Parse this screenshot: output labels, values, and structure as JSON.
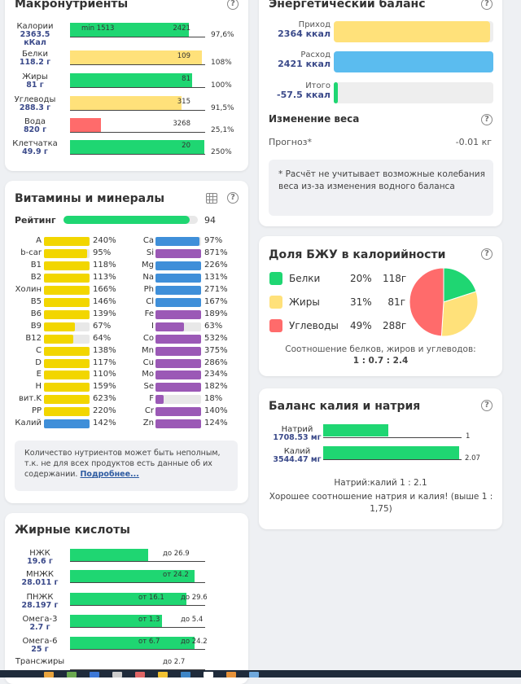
{
  "macros": {
    "title": "Макронутриенты",
    "rows": [
      {
        "name": "Калории",
        "amount": "2363.5",
        "unit": "кКал",
        "min_label": "min 1513",
        "norm": "2421",
        "pct": "97,6%",
        "fill": 0.976,
        "color": "#1fd672"
      },
      {
        "name": "Белки",
        "amount": "118.2 г",
        "norm": "109",
        "pct": "108%",
        "fill": 1.08,
        "color": "#ffe17a"
      },
      {
        "name": "Жиры",
        "amount": "81 г",
        "norm": "81",
        "pct": "100%",
        "fill": 1.0,
        "color": "#1fd672"
      },
      {
        "name": "Углеводы",
        "amount": "288.3 г",
        "norm": "315",
        "pct": "91,5%",
        "fill": 0.915,
        "color": "#ffe17a"
      },
      {
        "name": "Вода",
        "amount": "820 г",
        "norm": "3268",
        "pct": "25,1%",
        "fill": 0.251,
        "color": "#ff6b6b"
      },
      {
        "name": "Клетчатка",
        "amount": "49.9 г",
        "norm": "20",
        "pct": "250%",
        "fill": 2.5,
        "color": "#1fd672"
      }
    ]
  },
  "vitamins": {
    "title": "Витамины и минералы",
    "rating_label": "Рейтинг",
    "rating_value": "94",
    "rating_fill": 0.94,
    "left": [
      {
        "name": "A",
        "pct": "240%",
        "fill": 2.4,
        "color": "#f2d600"
      },
      {
        "name": "b-car",
        "pct": "95%",
        "fill": 0.95,
        "color": "#f2d600"
      },
      {
        "name": "B1",
        "pct": "118%",
        "fill": 1.18,
        "color": "#f2d600"
      },
      {
        "name": "B2",
        "pct": "113%",
        "fill": 1.13,
        "color": "#f2d600"
      },
      {
        "name": "Холин",
        "pct": "166%",
        "fill": 1.66,
        "color": "#f2d600"
      },
      {
        "name": "B5",
        "pct": "146%",
        "fill": 1.46,
        "color": "#f2d600"
      },
      {
        "name": "B6",
        "pct": "139%",
        "fill": 1.39,
        "color": "#f2d600"
      },
      {
        "name": "B9",
        "pct": "67%",
        "fill": 0.67,
        "color": "#f2d600"
      },
      {
        "name": "B12",
        "pct": "64%",
        "fill": 0.64,
        "color": "#f2d600"
      },
      {
        "name": "C",
        "pct": "138%",
        "fill": 1.38,
        "color": "#f2d600"
      },
      {
        "name": "D",
        "pct": "117%",
        "fill": 1.17,
        "color": "#f2d600"
      },
      {
        "name": "E",
        "pct": "110%",
        "fill": 1.1,
        "color": "#f2d600"
      },
      {
        "name": "H",
        "pct": "159%",
        "fill": 1.59,
        "color": "#f2d600"
      },
      {
        "name": "вит.K",
        "pct": "623%",
        "fill": 6.23,
        "color": "#f2d600"
      },
      {
        "name": "PP",
        "pct": "220%",
        "fill": 2.2,
        "color": "#f2d600"
      },
      {
        "name": "Калий",
        "pct": "142%",
        "fill": 1.42,
        "color": "#3f8fd9"
      }
    ],
    "right": [
      {
        "name": "Ca",
        "pct": "97%",
        "fill": 0.97,
        "color": "#3f8fd9"
      },
      {
        "name": "Si",
        "pct": "871%",
        "fill": 8.71,
        "color": "#9b59b6"
      },
      {
        "name": "Mg",
        "pct": "226%",
        "fill": 2.26,
        "color": "#3f8fd9"
      },
      {
        "name": "Na",
        "pct": "131%",
        "fill": 1.31,
        "color": "#3f8fd9"
      },
      {
        "name": "Ph",
        "pct": "271%",
        "fill": 2.71,
        "color": "#3f8fd9"
      },
      {
        "name": "Cl",
        "pct": "167%",
        "fill": 1.67,
        "color": "#3f8fd9"
      },
      {
        "name": "Fe",
        "pct": "189%",
        "fill": 1.89,
        "color": "#9b59b6"
      },
      {
        "name": "I",
        "pct": "63%",
        "fill": 0.63,
        "color": "#9b59b6"
      },
      {
        "name": "Co",
        "pct": "532%",
        "fill": 5.32,
        "color": "#9b59b6"
      },
      {
        "name": "Mn",
        "pct": "375%",
        "fill": 3.75,
        "color": "#9b59b6"
      },
      {
        "name": "Cu",
        "pct": "286%",
        "fill": 2.86,
        "color": "#9b59b6"
      },
      {
        "name": "Mo",
        "pct": "234%",
        "fill": 2.34,
        "color": "#9b59b6"
      },
      {
        "name": "Se",
        "pct": "182%",
        "fill": 1.82,
        "color": "#9b59b6"
      },
      {
        "name": "F",
        "pct": "18%",
        "fill": 0.18,
        "color": "#9b59b6"
      },
      {
        "name": "Cr",
        "pct": "140%",
        "fill": 1.4,
        "color": "#9b59b6"
      },
      {
        "name": "Zn",
        "pct": "124%",
        "fill": 1.24,
        "color": "#9b59b6"
      }
    ],
    "note": "Количество нутриентов может быть неполным, т.к. не для всех продуктов есть данные об их содержании.",
    "note_link": "Подробнее..."
  },
  "fatty": {
    "title": "Жирные кислоты",
    "rows": [
      {
        "name": "НЖК",
        "amount": "19.6 г",
        "marks": [
          "до 26.9"
        ],
        "fill": 0.58
      },
      {
        "name": "МНЖК",
        "amount": "28.011 г",
        "marks": [
          "от 24.2"
        ],
        "fill": 0.92
      },
      {
        "name": "ПНЖК",
        "amount": "28.197 г",
        "marks": [
          "от 16.1",
          "до 29.6"
        ],
        "fill": 0.86
      },
      {
        "name": "Омега-3",
        "amount": "2.7 г",
        "marks": [
          "от 1.3",
          "до 5.4"
        ],
        "fill": 0.68
      },
      {
        "name": "Омега-6",
        "amount": "25 г",
        "marks": [
          "от 6.7",
          "до 24.2"
        ],
        "fill": 0.92
      },
      {
        "name": "Трансжиры",
        "amount": "",
        "marks": [
          "до 2.7"
        ],
        "fill": 0
      }
    ]
  },
  "energy": {
    "title": "Энергетический баланс",
    "rows": [
      {
        "name": "Приход",
        "value": "2364 ккал",
        "fill": 0.98,
        "color": "#ffe17a"
      },
      {
        "name": "Расход",
        "value": "2421 ккал",
        "fill": 1.0,
        "color": "#5bbcef"
      },
      {
        "name": "Итого",
        "value": "-57.5 ккал",
        "fill": 0.02,
        "color": "#1fd672"
      }
    ],
    "weight_title": "Изменение веса",
    "forecast_label": "Прогноз*",
    "forecast_value": "-0.01 кг",
    "note": "* Расчёт не учитывает возможные колебания веса из-за изменения водного баланса"
  },
  "bju": {
    "title": "Доля БЖУ в калорийности",
    "items": [
      {
        "name": "Белки",
        "pct": "20%",
        "g": "118г",
        "fraction": 0.2,
        "color": "#1fd672"
      },
      {
        "name": "Жиры",
        "pct": "31%",
        "g": "81г",
        "fraction": 0.31,
        "color": "#ffe17a"
      },
      {
        "name": "Углеводы",
        "pct": "49%",
        "g": "288г",
        "fraction": 0.49,
        "color": "#ff6b6b"
      }
    ],
    "ratio_label": "Соотношение белков, жиров и углеводов:",
    "ratio_value": "1 : 0.7 : 2.4"
  },
  "potassium": {
    "title": "Баланс калия и натрия",
    "rows": [
      {
        "name": "Натрий",
        "value": "1708.53 мг",
        "ratio": "1",
        "fill": 0.48
      },
      {
        "name": "Калий",
        "value": "3544.47 мг",
        "ratio": "2.07",
        "fill": 1.0
      }
    ],
    "ratio_text": "Натрий:калий 1 : 2.1",
    "comment": "Хорошее соотношение натрия и калия! (выше 1 : 1,75)"
  },
  "taskbar_colors": [
    "#e8a33d",
    "#6aa84f",
    "#3c78d8",
    "#cccccc",
    "#e06666",
    "#f1c232",
    "#3d85c6",
    "#ffffff",
    "#e69138",
    "#6fa8dc"
  ]
}
